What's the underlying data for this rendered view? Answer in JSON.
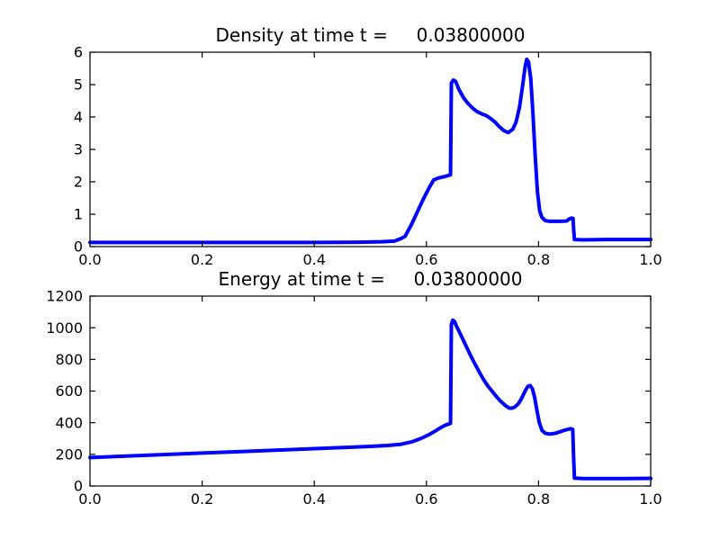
{
  "figure": {
    "background": "#ffffff",
    "frame_color": "#000000",
    "line_color": "#0000ff"
  },
  "chart_data": [
    {
      "type": "line",
      "title": "Density at time t =     0.03800000",
      "xlabel": "",
      "ylabel": "",
      "xlim": [
        0.0,
        1.0
      ],
      "ylim": [
        0,
        6
      ],
      "grid": false,
      "legend": null,
      "xticks": [
        0.0,
        0.2,
        0.4,
        0.6,
        0.8,
        1.0
      ],
      "xtick_labels": [
        "0.0",
        "0.2",
        "0.4",
        "0.6",
        "0.8",
        "1.0"
      ],
      "yticks": [
        0,
        1,
        2,
        3,
        4,
        5,
        6
      ],
      "ytick_labels": [
        "0",
        "1",
        "2",
        "3",
        "4",
        "5",
        "6"
      ],
      "series": [
        {
          "name": "density",
          "color": "#0000ff",
          "line_width": 4,
          "x": [
            0.0,
            0.1,
            0.2,
            0.3,
            0.4,
            0.48,
            0.52,
            0.543,
            0.555,
            0.562,
            0.573,
            0.583,
            0.594,
            0.605,
            0.613,
            0.622,
            0.632,
            0.64,
            0.643,
            0.6445,
            0.648,
            0.652,
            0.658,
            0.666,
            0.674,
            0.682,
            0.69,
            0.698,
            0.706,
            0.714,
            0.722,
            0.73,
            0.738,
            0.746,
            0.754,
            0.76,
            0.766,
            0.771,
            0.776,
            0.779,
            0.782,
            0.786,
            0.79,
            0.794,
            0.798,
            0.802,
            0.806,
            0.812,
            0.82,
            0.83,
            0.84,
            0.85,
            0.8555,
            0.859,
            0.8615,
            0.8625,
            0.864,
            0.88,
            0.92,
            0.96,
            1.0
          ],
          "y": [
            0.13,
            0.13,
            0.13,
            0.13,
            0.13,
            0.135,
            0.15,
            0.17,
            0.25,
            0.32,
            0.67,
            1.04,
            1.45,
            1.82,
            2.06,
            2.12,
            2.16,
            2.2,
            2.22,
            5.05,
            5.14,
            5.1,
            4.85,
            4.6,
            4.42,
            4.28,
            4.17,
            4.1,
            4.05,
            3.96,
            3.85,
            3.7,
            3.58,
            3.52,
            3.62,
            3.85,
            4.3,
            4.9,
            5.55,
            5.78,
            5.7,
            5.2,
            4.1,
            2.8,
            1.7,
            1.1,
            0.9,
            0.8,
            0.78,
            0.78,
            0.78,
            0.79,
            0.86,
            0.88,
            0.87,
            0.55,
            0.22,
            0.21,
            0.22,
            0.22,
            0.22
          ]
        }
      ]
    },
    {
      "type": "line",
      "title": "Energy at time t =     0.03800000",
      "xlabel": "",
      "ylabel": "",
      "xlim": [
        0.0,
        1.0
      ],
      "ylim": [
        0,
        1200
      ],
      "grid": false,
      "legend": null,
      "xticks": [
        0.0,
        0.2,
        0.4,
        0.6,
        0.8,
        1.0
      ],
      "xtick_labels": [
        "0.0",
        "0.2",
        "0.4",
        "0.6",
        "0.8",
        "1.0"
      ],
      "yticks": [
        0,
        200,
        400,
        600,
        800,
        1000,
        1200
      ],
      "ytick_labels": [
        "0",
        "200",
        "400",
        "600",
        "800",
        "1000",
        "1200"
      ],
      "series": [
        {
          "name": "energy",
          "color": "#0000ff",
          "line_width": 4,
          "x": [
            0.0,
            0.05,
            0.1,
            0.15,
            0.2,
            0.25,
            0.3,
            0.35,
            0.4,
            0.45,
            0.5,
            0.53,
            0.555,
            0.575,
            0.59,
            0.605,
            0.617,
            0.627,
            0.634,
            0.64,
            0.643,
            0.6445,
            0.647,
            0.65,
            0.655,
            0.662,
            0.67,
            0.678,
            0.686,
            0.694,
            0.702,
            0.71,
            0.718,
            0.726,
            0.734,
            0.742,
            0.748,
            0.753,
            0.758,
            0.764,
            0.77,
            0.776,
            0.781,
            0.785,
            0.789,
            0.793,
            0.797,
            0.801,
            0.806,
            0.812,
            0.82,
            0.83,
            0.84,
            0.85,
            0.857,
            0.861,
            0.8625,
            0.864,
            0.88,
            0.92,
            0.96,
            1.0
          ],
          "y": [
            180,
            187,
            194,
            201,
            208,
            215,
            222,
            229,
            236,
            243,
            250,
            256,
            264,
            280,
            300,
            325,
            350,
            372,
            385,
            392,
            396,
            1020,
            1048,
            1040,
            1000,
            950,
            890,
            830,
            775,
            722,
            672,
            630,
            595,
            560,
            530,
            505,
            492,
            492,
            500,
            520,
            555,
            600,
            630,
            635,
            615,
            560,
            480,
            405,
            352,
            333,
            328,
            333,
            345,
            356,
            362,
            358,
            180,
            50,
            47,
            47,
            47,
            48
          ]
        }
      ]
    }
  ]
}
